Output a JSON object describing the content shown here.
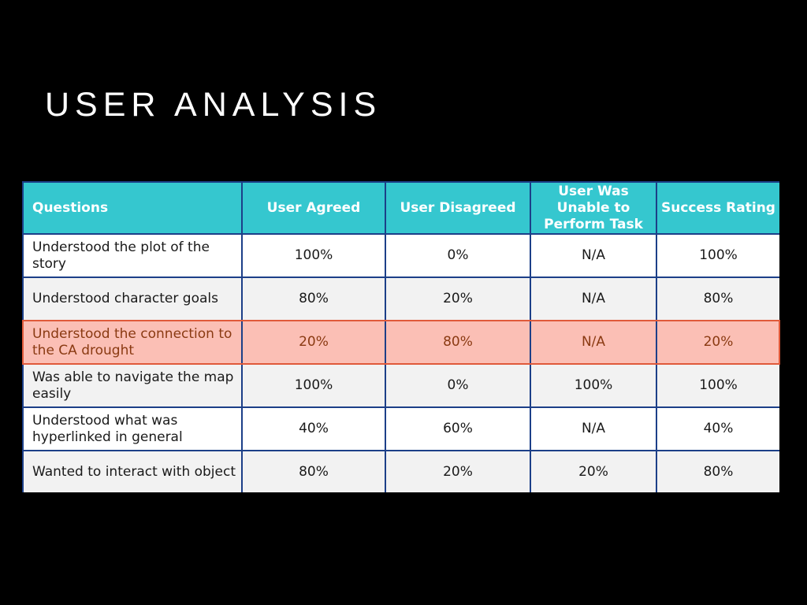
{
  "slide": {
    "title": "USER ANALYSIS"
  },
  "table": {
    "headers": [
      "Questions",
      "User Agreed",
      "User Disagreed",
      "User Was Unable to Perform Task",
      "Success Rating"
    ],
    "rows": [
      {
        "question": "Understood the plot of the story",
        "agreed": "100%",
        "disagreed": "0%",
        "unable": "N/A",
        "success": "100%"
      },
      {
        "question": "Understood character goals",
        "agreed": "80%",
        "disagreed": "20%",
        "unable": "N/A",
        "success": "80%"
      },
      {
        "question": "Understood the connection to the CA drought",
        "agreed": "20%",
        "disagreed": "80%",
        "unable": "N/A",
        "success": "20%"
      },
      {
        "question": "Was able to navigate the map easily",
        "agreed": "100%",
        "disagreed": "0%",
        "unable": "100%",
        "success": "100%"
      },
      {
        "question": "Understood what was hyperlinked in general",
        "agreed": "40%",
        "disagreed": "60%",
        "unable": "N/A",
        "success": "40%"
      },
      {
        "question": "Wanted to interact with object",
        "agreed": "80%",
        "disagreed": "20%",
        "unable": "20%",
        "success": "80%"
      }
    ]
  },
  "colors": {
    "background": "#000000",
    "header_fill": "#35c7cf",
    "grid_lines": "#1c3f88",
    "row_alt_fill": "#f2f2f2",
    "highlight_fill": "#fbbfb5",
    "highlight_text": "#8a3a12"
  }
}
